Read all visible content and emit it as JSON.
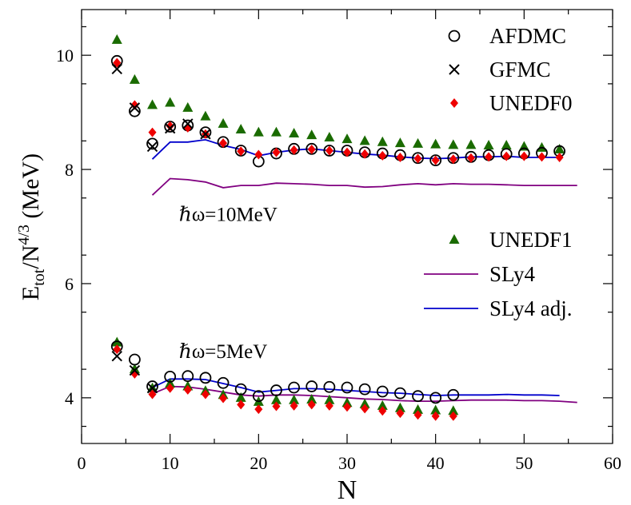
{
  "chart_data": {
    "type": "scatter",
    "xlabel": "N",
    "ylabel_main": "E",
    "ylabel_sub": "tot",
    "ylabel_mid": "/N",
    "ylabel_sup": "4/3",
    "ylabel_unit": " (MeV)",
    "xlim": [
      0,
      60
    ],
    "ylim": [
      3.2,
      10.8
    ],
    "x_ticks": [
      0,
      10,
      20,
      30,
      40,
      50,
      60
    ],
    "x_tick_labels": [
      "0",
      "10",
      "20",
      "30",
      "40",
      "50",
      "60"
    ],
    "y_ticks": [
      4,
      6,
      8,
      10
    ],
    "y_tick_labels": [
      "4",
      "6",
      "8",
      "10"
    ],
    "grid": false,
    "legend_placement": "right",
    "annotations": [
      {
        "text": "ℏω=10MeV",
        "x": 11,
        "y": 7.1
      },
      {
        "text": "ℏω=5MeV",
        "x": 11,
        "y": 4.7
      }
    ],
    "series": [
      {
        "name": "AFDMC",
        "marker": "circle",
        "color": "#000000",
        "groups": [
          {
            "x": [
              4,
              6,
              8,
              10,
              12,
              14,
              16,
              18,
              20,
              22,
              24,
              26,
              28,
              30,
              32,
              34,
              36,
              38,
              40,
              42,
              44,
              46,
              48,
              50,
              52,
              54
            ],
            "y": [
              9.9,
              9.02,
              8.45,
              8.75,
              8.77,
              8.65,
              8.48,
              8.33,
              8.14,
              8.28,
              8.36,
              8.36,
              8.33,
              8.33,
              8.3,
              8.28,
              8.25,
              8.2,
              8.16,
              8.2,
              8.22,
              8.25,
              8.27,
              8.28,
              8.29,
              8.32
            ]
          },
          {
            "x": [
              4,
              6,
              8,
              10,
              12,
              14,
              16,
              18,
              20,
              22,
              24,
              26,
              28,
              30,
              32,
              34,
              36,
              38,
              40,
              42
            ],
            "y": [
              4.9,
              4.67,
              4.2,
              4.37,
              4.38,
              4.35,
              4.26,
              4.15,
              4.03,
              4.13,
              4.18,
              4.2,
              4.19,
              4.18,
              4.15,
              4.11,
              4.08,
              4.03,
              4.0,
              4.05
            ]
          }
        ]
      },
      {
        "name": "GFMC",
        "marker": "cross",
        "color": "#000000",
        "groups": [
          {
            "x": [
              4,
              6,
              8,
              10,
              12,
              14
            ],
            "y": [
              9.76,
              9.08,
              8.4,
              8.72,
              8.8,
              8.62
            ]
          },
          {
            "x": [
              4,
              6,
              8
            ],
            "y": [
              4.73,
              4.48,
              4.17
            ]
          }
        ]
      },
      {
        "name": "UNEDF0",
        "marker": "diamond",
        "color": "#ee0000",
        "groups": [
          {
            "x": [
              4,
              6,
              8,
              10,
              12,
              14,
              16,
              18,
              20,
              22,
              24,
              26,
              28,
              30,
              32,
              34,
              36,
              38,
              40,
              42,
              44,
              46,
              48,
              50,
              52,
              54
            ],
            "y": [
              9.87,
              9.13,
              8.65,
              8.76,
              8.73,
              8.62,
              8.46,
              8.32,
              8.26,
              8.3,
              8.34,
              8.35,
              8.33,
              8.3,
              8.27,
              8.24,
              8.21,
              8.19,
              8.16,
              8.18,
              8.2,
              8.22,
              8.23,
              8.23,
              8.22,
              8.21
            ]
          },
          {
            "x": [
              4,
              6,
              8,
              10,
              12,
              14,
              16,
              18,
              20,
              22,
              24,
              26,
              28,
              30,
              32,
              34,
              36,
              38,
              40,
              42
            ],
            "y": [
              4.85,
              4.42,
              4.06,
              4.17,
              4.14,
              4.06,
              3.99,
              3.88,
              3.8,
              3.85,
              3.86,
              3.88,
              3.86,
              3.84,
              3.81,
              3.77,
              3.73,
              3.7,
              3.68,
              3.68
            ]
          }
        ]
      },
      {
        "name": "UNEDF1",
        "marker": "triangle",
        "color": "#1a6b00",
        "groups": [
          {
            "x": [
              4,
              6,
              8,
              10,
              12,
              14,
              16,
              18,
              20,
              22,
              24,
              26,
              28,
              30,
              32,
              34,
              36,
              38,
              40,
              42,
              44,
              46,
              48,
              50,
              52,
              54
            ],
            "y": [
              10.27,
              9.57,
              9.13,
              9.17,
              9.08,
              8.93,
              8.8,
              8.7,
              8.65,
              8.65,
              8.63,
              8.6,
              8.56,
              8.53,
              8.5,
              8.48,
              8.46,
              8.45,
              8.44,
              8.43,
              8.43,
              8.42,
              8.42,
              8.4,
              8.38,
              8.35
            ]
          },
          {
            "x": [
              4,
              6,
              8,
              10,
              12,
              14,
              16,
              18,
              20,
              22,
              24,
              26,
              28,
              30,
              32,
              34,
              36,
              38,
              40,
              42
            ],
            "y": [
              4.97,
              4.5,
              4.17,
              4.25,
              4.2,
              4.12,
              4.05,
              4.0,
              3.93,
              3.96,
              3.96,
              3.97,
              3.96,
              3.91,
              3.89,
              3.86,
              3.82,
              3.79,
              3.78,
              3.77
            ]
          }
        ]
      },
      {
        "name": "SLy4",
        "marker": "line",
        "color": "#800080",
        "groups": [
          {
            "x": [
              8,
              10,
              12,
              14,
              16,
              18,
              20,
              22,
              24,
              26,
              28,
              30,
              32,
              34,
              36,
              38,
              40,
              42,
              44,
              46,
              48,
              50,
              52,
              54,
              56
            ],
            "y": [
              7.55,
              7.84,
              7.82,
              7.78,
              7.68,
              7.72,
              7.72,
              7.76,
              7.75,
              7.74,
              7.72,
              7.72,
              7.69,
              7.7,
              7.73,
              7.75,
              7.73,
              7.75,
              7.74,
              7.74,
              7.73,
              7.72,
              7.72,
              7.72,
              7.72
            ]
          },
          {
            "x": [
              8,
              10,
              12,
              14,
              16,
              18,
              20,
              22,
              24,
              26,
              28,
              30,
              32,
              34,
              36,
              38,
              40,
              42,
              44,
              46,
              48,
              50,
              52,
              54,
              56
            ],
            "y": [
              4.07,
              4.2,
              4.19,
              4.15,
              4.1,
              4.05,
              4.03,
              4.05,
              4.05,
              4.04,
              4.02,
              4.0,
              3.98,
              3.97,
              3.95,
              3.94,
              3.94,
              3.95,
              3.96,
              3.96,
              3.96,
              3.95,
              3.95,
              3.94,
              3.92
            ]
          }
        ]
      },
      {
        "name": "SLy4 adj.",
        "marker": "line",
        "color": "#0000cc",
        "groups": [
          {
            "x": [
              8,
              10,
              12,
              14,
              16,
              18,
              20,
              22,
              24,
              26,
              28,
              30,
              32,
              34,
              36,
              38,
              40,
              42,
              44,
              46,
              48,
              50,
              52,
              54
            ],
            "y": [
              8.18,
              8.48,
              8.48,
              8.52,
              8.42,
              8.35,
              8.24,
              8.3,
              8.34,
              8.36,
              8.33,
              8.3,
              8.27,
              8.25,
              8.22,
              8.2,
              8.19,
              8.2,
              8.22,
              8.22,
              8.23,
              8.21,
              8.21,
              8.21
            ]
          },
          {
            "x": [
              8,
              10,
              12,
              14,
              16,
              18,
              20,
              22,
              24,
              26,
              28,
              30,
              32,
              34,
              36,
              38,
              40,
              42,
              44,
              46,
              48,
              50,
              52,
              54
            ],
            "y": [
              4.18,
              4.33,
              4.33,
              4.32,
              4.25,
              4.18,
              4.1,
              4.13,
              4.16,
              4.16,
              4.15,
              4.13,
              4.11,
              4.09,
              4.08,
              4.06,
              4.04,
              4.05,
              4.05,
              4.05,
              4.06,
              4.05,
              4.05,
              4.04
            ]
          }
        ]
      }
    ]
  }
}
